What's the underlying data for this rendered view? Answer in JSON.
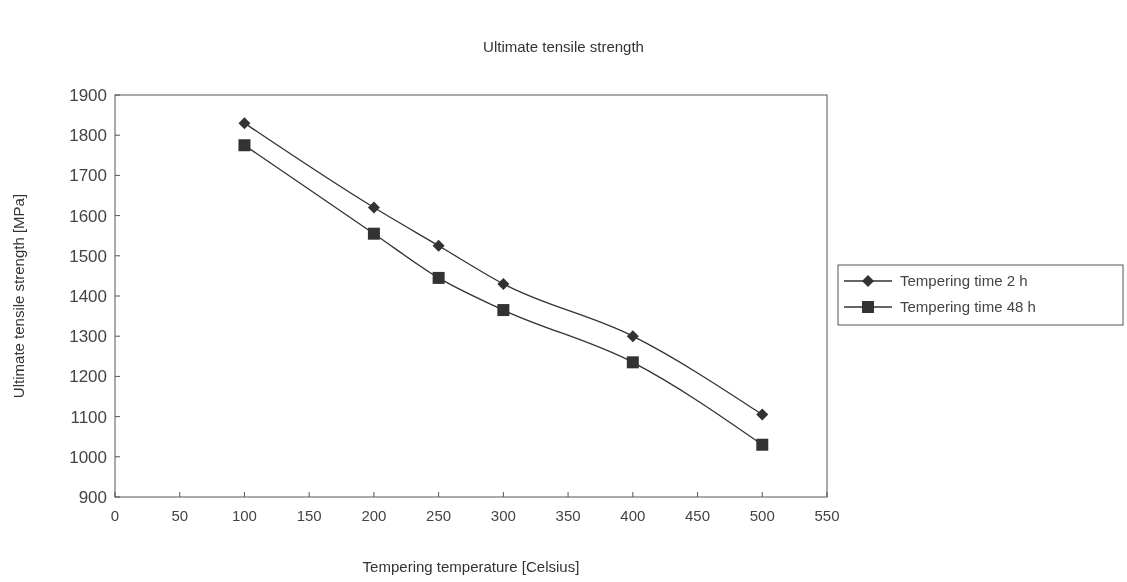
{
  "chart_data": {
    "type": "line",
    "title": "Ultimate tensile strength",
    "xlabel": "Tempering temperature [Celsius]",
    "ylabel": "Ultimate tensile strength [MPa]",
    "x": [
      100,
      200,
      250,
      300,
      400,
      500
    ],
    "series": [
      {
        "name": "Tempering time 2 h",
        "color": "#333333",
        "marker": "diamond",
        "values": [
          1830,
          1620,
          1525,
          1430,
          1300,
          1105
        ]
      },
      {
        "name": "Tempering time 48 h",
        "color": "#333333",
        "marker": "square",
        "values": [
          1775,
          1555,
          1445,
          1365,
          1235,
          1030
        ]
      }
    ],
    "xlim": [
      0,
      550
    ],
    "xticks": [
      0,
      50,
      100,
      150,
      200,
      250,
      300,
      350,
      400,
      450,
      500,
      550
    ],
    "ylim": [
      900,
      1900
    ],
    "yticks": [
      900,
      1000,
      1100,
      1200,
      1300,
      1400,
      1500,
      1600,
      1700,
      1800,
      1900
    ],
    "legend": "right",
    "grid": false,
    "line_style": "solid"
  }
}
